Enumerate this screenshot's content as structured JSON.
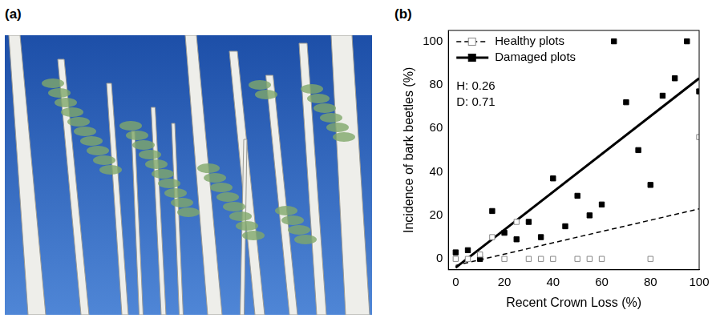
{
  "panels": [
    {
      "label": "(a)"
    }
  ],
  "chart_data": {
    "label": "(b)",
    "type": "scatter",
    "xlabel": "Recent Crown Loss (%)",
    "ylabel": "Incidence of bark beetles (%)",
    "xlim": [
      -3,
      100
    ],
    "ylim": [
      -5,
      105
    ],
    "xticks": [
      0,
      20,
      40,
      60,
      80,
      100
    ],
    "yticks": [
      0,
      20,
      40,
      60,
      80,
      100
    ],
    "grid": false,
    "legend": "upper left",
    "annotations": [
      "H: 0.26",
      "D: 0.71"
    ],
    "series": [
      {
        "name": "Healthy plots",
        "color": "#888888",
        "marker": "open_square",
        "line_style": "dashed",
        "x": [
          0,
          5,
          10,
          15,
          20,
          25,
          30,
          35,
          40,
          50,
          55,
          60,
          80,
          100
        ],
        "values": [
          0,
          0,
          2,
          10,
          0,
          17,
          0,
          0,
          0,
          0,
          0,
          0,
          0,
          56
        ],
        "fit": {
          "x": [
            0,
            100
          ],
          "values": [
            -3,
            23
          ]
        }
      },
      {
        "name": "Damaged plots",
        "color": "#000000",
        "marker": "filled_square",
        "line_style": "solid",
        "x": [
          0,
          5,
          10,
          15,
          20,
          25,
          30,
          35,
          40,
          45,
          50,
          55,
          60,
          65,
          70,
          75,
          80,
          85,
          90,
          95,
          100
        ],
        "values": [
          3,
          4,
          0,
          22,
          12,
          9,
          17,
          10,
          37,
          15,
          29,
          20,
          25,
          100,
          72,
          50,
          34,
          75,
          83,
          100,
          77
        ],
        "fit": {
          "x": [
            0,
            100
          ],
          "values": [
            -4,
            83
          ]
        }
      }
    ]
  }
}
